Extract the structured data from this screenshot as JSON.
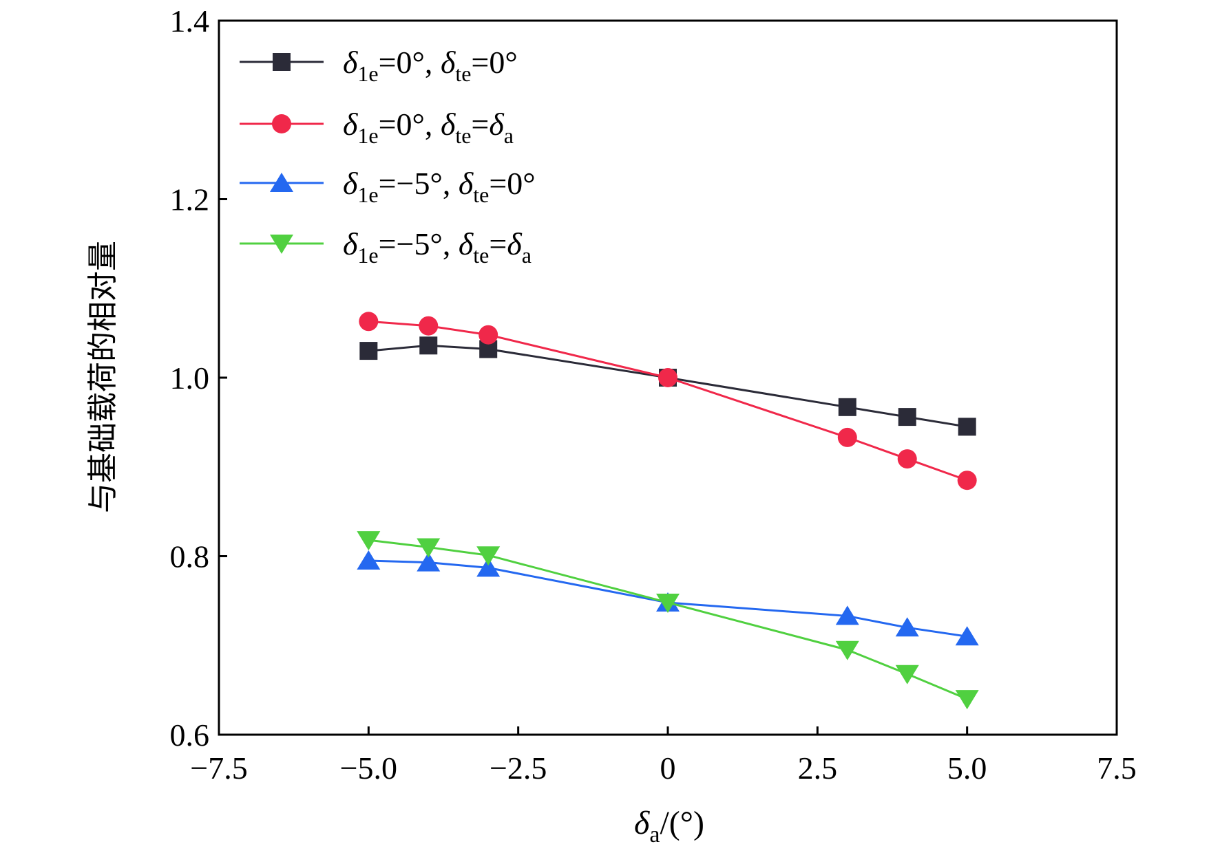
{
  "chart_data": {
    "type": "line",
    "title": "",
    "xlabel": "δa/(°)",
    "xlabel_parts": {
      "sym": "δ",
      "sub": "a",
      "rest": "/(°)"
    },
    "ylabel": "与基础载荷的相对量",
    "xlim": [
      -7.5,
      7.5
    ],
    "ylim": [
      0.6,
      1.4
    ],
    "xticks": [
      -7.5,
      -5.0,
      -2.5,
      0,
      2.5,
      5.0,
      7.5
    ],
    "xtick_labels": [
      "−7.5",
      "−5.0",
      "−2.5",
      "0",
      "2.5",
      "5.0",
      "7.5"
    ],
    "yticks": [
      0.6,
      0.8,
      1.0,
      1.2,
      1.4
    ],
    "ytick_labels": [
      "0.6",
      "0.8",
      "1.0",
      "1.2",
      "1.4"
    ],
    "grid": false,
    "legend_position": "top-left",
    "x": [
      -5,
      -4,
      -3,
      0,
      3,
      4,
      5
    ],
    "series": [
      {
        "name": "δ1e=0°, δte=0°",
        "legend": {
          "a": "=0°, ",
          "b": "=0°",
          "b_sub": ""
        },
        "color": "#2b2b38",
        "marker": "square",
        "values": [
          1.03,
          1.036,
          1.032,
          1.0,
          0.967,
          0.956,
          0.945
        ]
      },
      {
        "name": "δ1e=0°, δte=δa",
        "legend": {
          "a": "=0°, ",
          "b": "=δ",
          "b_sub": "a"
        },
        "color": "#f0284a",
        "marker": "circle",
        "values": [
          1.063,
          1.058,
          1.048,
          1.0,
          0.933,
          0.909,
          0.885
        ]
      },
      {
        "name": "δ1e=−5°, δte=0°",
        "legend": {
          "a": "=−5°, ",
          "b": "=0°",
          "b_sub": ""
        },
        "color": "#2468f0",
        "marker": "triangle-up",
        "values": [
          0.795,
          0.793,
          0.787,
          0.748,
          0.733,
          0.72,
          0.71
        ]
      },
      {
        "name": "δ1e=−5°, δte=δa",
        "legend": {
          "a": "=−5°, ",
          "b": "=δ",
          "b_sub": "a"
        },
        "color": "#50d040",
        "marker": "triangle-down",
        "values": [
          0.818,
          0.81,
          0.801,
          0.748,
          0.695,
          0.668,
          0.64
        ]
      }
    ],
    "legend_symbol_parts": {
      "delta": "δ",
      "sub1": "1e",
      "sub2": "te"
    }
  }
}
